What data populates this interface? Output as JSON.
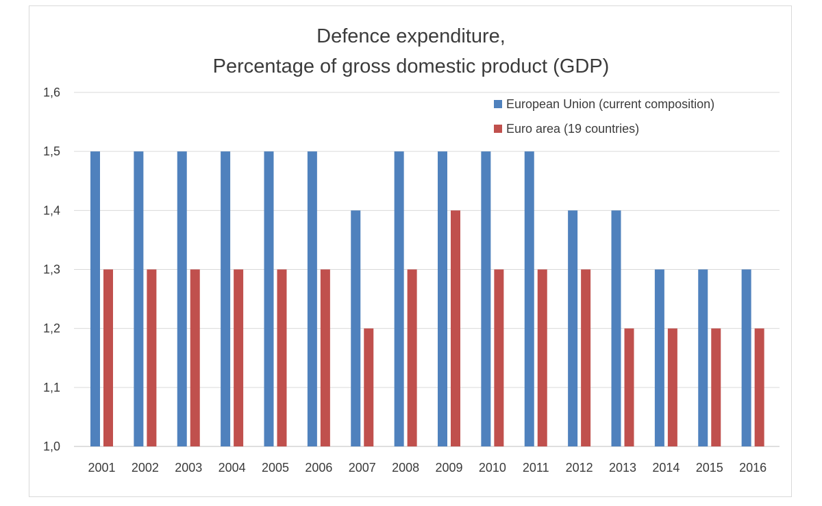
{
  "chart_data": {
    "type": "bar",
    "title_lines": [
      "Defence expenditure,",
      "Percentage of gross domestic product (GDP)"
    ],
    "xlabel": "",
    "ylabel": "",
    "ylim": [
      1.0,
      1.6
    ],
    "y_ticks": [
      "1,0",
      "1,1",
      "1,2",
      "1,3",
      "1,4",
      "1,5",
      "1,6"
    ],
    "y_tick_values": [
      1.0,
      1.1,
      1.2,
      1.3,
      1.4,
      1.5,
      1.6
    ],
    "grid": true,
    "legend_position": "top-right",
    "categories": [
      "2001",
      "2002",
      "2003",
      "2004",
      "2005",
      "2006",
      "2007",
      "2008",
      "2009",
      "2010",
      "2011",
      "2012",
      "2013",
      "2014",
      "2015",
      "2016"
    ],
    "series": [
      {
        "name": "European Union (current composition)",
        "color": "#4f81bd",
        "values": [
          1.5,
          1.5,
          1.5,
          1.5,
          1.5,
          1.5,
          1.4,
          1.5,
          1.5,
          1.5,
          1.5,
          1.4,
          1.4,
          1.3,
          1.3,
          1.3
        ]
      },
      {
        "name": "Euro area (19 countries)",
        "color": "#c0504d",
        "values": [
          1.3,
          1.3,
          1.3,
          1.3,
          1.3,
          1.3,
          1.2,
          1.3,
          1.4,
          1.3,
          1.3,
          1.3,
          1.2,
          1.2,
          1.2,
          1.2
        ]
      }
    ]
  }
}
